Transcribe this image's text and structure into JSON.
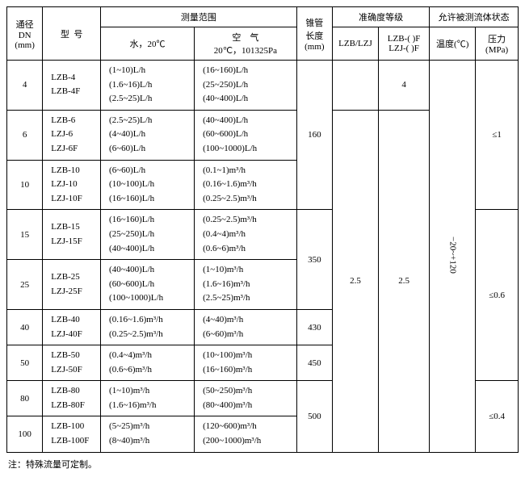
{
  "header": {
    "dn": "通径\nDN\n(mm)",
    "model": "型  号",
    "range_group": "测量范围",
    "water": "水，20℃",
    "air": "空    气\n20℃，101325Pa",
    "length": "锥管\n长度\n(mm)",
    "accuracy_group": "准确度等级",
    "acc1": "LZB/LZJ",
    "acc2": "LZB-( )F\nLZJ-( )F",
    "fluid_group": "允许被测流体状态",
    "temp": "温度(℃)",
    "press": "压力\n(MPa)"
  },
  "rows": [
    {
      "dn": "4",
      "models": "LZB-4\nLZB-4F",
      "water": "(1~10)L/h\n(1.6~16)L/h\n(2.5~25)L/h",
      "air": "(16~160)L/h\n(25~250)L/h\n(40~400)L/h"
    },
    {
      "dn": "6",
      "models": "LZB-6\nLZJ-6\nLZJ-6F",
      "water": "(2.5~25)L/h\n(4~40)L/h\n(6~60)L/h",
      "air": "(40~400)L/h\n(60~600)L/h\n(100~1000)L/h"
    },
    {
      "dn": "10",
      "models": "LZB-10\nLZJ-10\nLZJ-10F",
      "water": "(6~60)L/h\n(10~100)L/h\n(16~160)L/h",
      "air": "(0.1~1)m³/h\n(0.16~1.6)m³/h\n(0.25~2.5)m³/h"
    },
    {
      "dn": "15",
      "models": "LZB-15\nLZJ-15F",
      "water": "(16~160)L/h\n(25~250)L/h\n(40~400)L/h",
      "air": "(0.25~2.5)m³/h\n(0.4~4)m³/h\n(0.6~6)m³/h"
    },
    {
      "dn": "25",
      "models": "LZB-25\nLZJ-25F",
      "water": "(40~400)L/h\n(60~600)L/h\n(100~1000)L/h",
      "air": "(1~10)m³/h\n(1.6~16)m³/h\n(2.5~25)m³/h"
    },
    {
      "dn": "40",
      "models": "LZB-40\nLZJ-40F",
      "water": "(0.16~1.6)m³/h\n(0.25~2.5)m³/h",
      "air": "(4~40)m³/h\n(6~60)m³/h"
    },
    {
      "dn": "50",
      "models": "LZB-50\nLZJ-50F",
      "water": "(0.4~4)m³/h\n(0.6~6)m³/h",
      "air": "(10~100)m³/h\n(16~160)m³/h"
    },
    {
      "dn": "80",
      "models": "LZB-80\nLZB-80F",
      "water": "(1~10)m³/h\n(1.6~16)m³/h",
      "air": "(50~250)m³/h\n(80~400)m³/h"
    },
    {
      "dn": "100",
      "models": "LZB-100\nLZB-100F",
      "water": "(5~25)m³/h\n(8~40)m³/h",
      "air": "(120~600)m³/h\n(200~1000)m³/h"
    }
  ],
  "spans": {
    "len160": "160",
    "len350": "350",
    "len430": "430",
    "len450": "450",
    "len500": "500",
    "acc1_top": "",
    "acc1_main": "2.5",
    "acc2_4": "4",
    "acc2_rest": "2.5",
    "temp_all": "−20~+120",
    "press_top": "≤1",
    "press_mid": "≤0.6",
    "press_bot": "≤0.4"
  },
  "note": "注：特殊流量可定制。"
}
